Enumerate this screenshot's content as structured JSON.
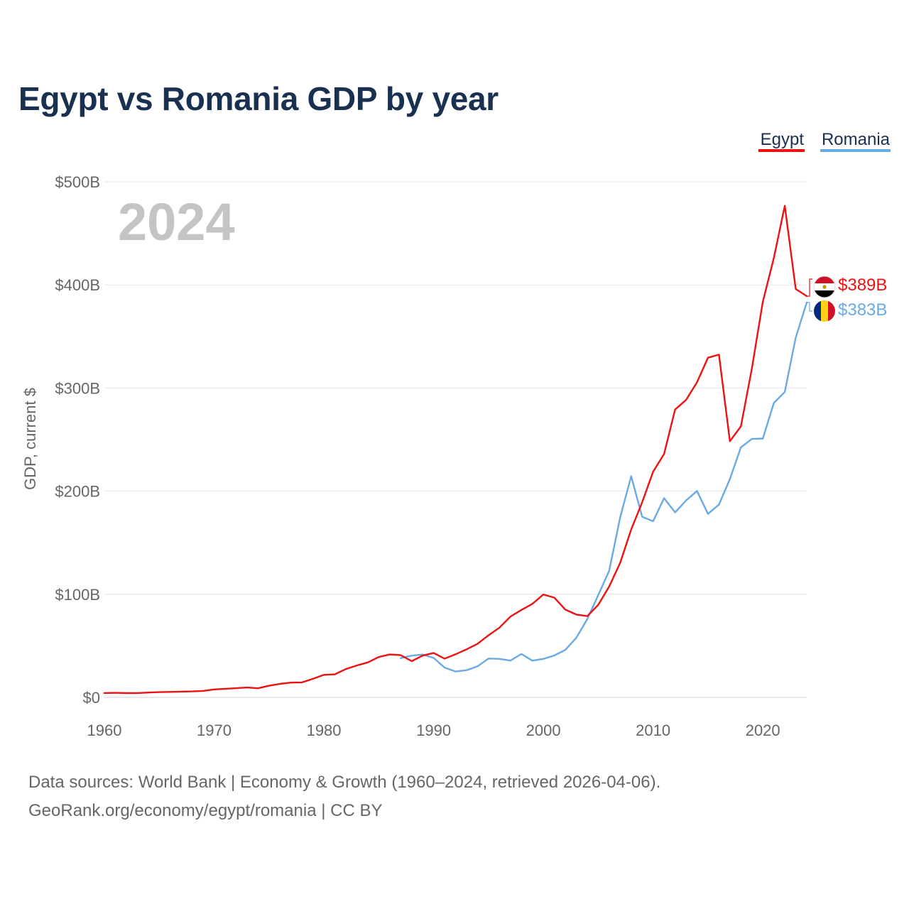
{
  "title": "Egypt vs Romania GDP by year",
  "watermark_year": "2024",
  "source_line1": "Data sources: World Bank | Economy & Growth (1960–2024, retrieved 2026-04-06).",
  "source_line2": "GeoRank.org/economy/egypt/romania | CC BY",
  "colors": {
    "egypt": "#ee1111",
    "romania": "#6aaae4",
    "title": "#1a3050",
    "grid": "#e6e6e6"
  },
  "chart_data": {
    "type": "line",
    "title": "Egypt vs Romania GDP by year",
    "xlabel": "",
    "ylabel": "GDP, current $",
    "xlim": [
      1960,
      2024
    ],
    "ylim": [
      0,
      500
    ],
    "unit": "billion USD",
    "x_ticks": [
      1960,
      1970,
      1980,
      1990,
      2000,
      2010,
      2020
    ],
    "x_tick_labels": [
      "1960",
      "1970",
      "1980",
      "1990",
      "2000",
      "2010",
      "2020"
    ],
    "y_ticks": [
      0,
      100,
      200,
      300,
      400,
      500
    ],
    "y_tick_labels": [
      "$0",
      "$100B",
      "$200B",
      "$300B",
      "$400B",
      "$500B"
    ],
    "legend_position": "top-right",
    "series": [
      {
        "name": "Egypt",
        "color": "#ee1111",
        "end_label": "$389B",
        "icon": "egypt-flag-icon",
        "x": [
          1960,
          1961,
          1962,
          1963,
          1964,
          1965,
          1966,
          1967,
          1968,
          1969,
          1970,
          1971,
          1972,
          1973,
          1974,
          1975,
          1976,
          1977,
          1978,
          1979,
          1980,
          1981,
          1982,
          1983,
          1984,
          1985,
          1986,
          1987,
          1988,
          1989,
          1990,
          1991,
          1992,
          1993,
          1994,
          1995,
          1996,
          1997,
          1998,
          1999,
          2000,
          2001,
          2002,
          2003,
          2004,
          2005,
          2006,
          2007,
          2008,
          2009,
          2010,
          2011,
          2012,
          2013,
          2014,
          2015,
          2016,
          2017,
          2018,
          2019,
          2020,
          2021,
          2022,
          2023,
          2024
        ],
        "values": [
          4.2,
          4.4,
          4.1,
          4.2,
          4.7,
          5.1,
          5.3,
          5.6,
          5.8,
          6.3,
          7.7,
          8.3,
          8.9,
          9.6,
          8.8,
          11.3,
          13.1,
          14.3,
          14.5,
          18.0,
          21.8,
          22.3,
          27.5,
          30.9,
          33.9,
          39.1,
          41.6,
          41.0,
          35.1,
          40.5,
          43.1,
          37.5,
          41.8,
          46.6,
          51.9,
          60.2,
          67.6,
          78.4,
          84.8,
          90.7,
          99.8,
          96.7,
          85.1,
          80.3,
          78.8,
          89.7,
          107.5,
          130.5,
          162.8,
          189.1,
          218.9,
          236.0,
          279.1,
          288.4,
          305.6,
          329.4,
          332.4,
          248.4,
          262.8,
          318.7,
          383.8,
          425.9,
          476.7,
          396.0,
          389.1
        ]
      },
      {
        "name": "Romania",
        "color": "#6aaae4",
        "end_label": "$383B",
        "icon": "romania-flag-icon",
        "x": [
          1987,
          1988,
          1989,
          1990,
          1991,
          1992,
          1993,
          1994,
          1995,
          1996,
          1997,
          1998,
          1999,
          2000,
          2001,
          2002,
          2003,
          2004,
          2005,
          2006,
          2007,
          2008,
          2009,
          2010,
          2011,
          2012,
          2013,
          2014,
          2015,
          2016,
          2017,
          2018,
          2019,
          2020,
          2021,
          2022,
          2023,
          2024
        ],
        "values": [
          38.1,
          40.5,
          41.5,
          38.3,
          28.9,
          25.1,
          26.4,
          30.1,
          37.7,
          37.3,
          35.7,
          42.1,
          35.6,
          37.3,
          40.6,
          46.0,
          57.8,
          75.8,
          99.2,
          122.7,
          174.6,
          214.5,
          175.2,
          170.8,
          193.2,
          179.4,
          190.9,
          200.2,
          177.9,
          187.0,
          211.7,
          242.5,
          250.6,
          251.0,
          285.4,
          296.3,
          349.0,
          383.0
        ]
      }
    ]
  }
}
